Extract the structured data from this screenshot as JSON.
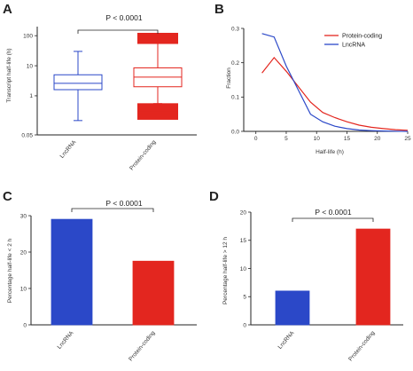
{
  "chart_data": [
    {
      "panel": "A",
      "type": "box",
      "ylabel": "Transcript half-life (h)",
      "yscale": "log",
      "ylim": [
        0.05,
        200
      ],
      "yticks": [
        {
          "v": 0.05,
          "label": "0.05"
        },
        {
          "v": 1,
          "label": "1"
        },
        {
          "v": 10,
          "label": "10"
        },
        {
          "v": 100,
          "label": "100"
        }
      ],
      "categories": [
        "LncRNA",
        "Protein-coding"
      ],
      "boxes": [
        {
          "name": "LncRNA",
          "color": "#2b48c8",
          "whisker_low": 0.15,
          "q1": 1.6,
          "median": 2.6,
          "q3": 5.0,
          "whisker_high": 30
        },
        {
          "name": "Protein-coding",
          "color": "#e3261f",
          "whisker_low": 0.55,
          "q1": 2.0,
          "median": 4.2,
          "q3": 8.5,
          "whisker_high": 55,
          "outliers_low": [
            0.5,
            0.45,
            0.4,
            0.35,
            0.3,
            0.26,
            0.23,
            0.2,
            0.18
          ],
          "outliers_high": [
            60,
            70,
            80,
            95,
            110
          ]
        }
      ],
      "pvalue": "P < 0.0001"
    },
    {
      "panel": "B",
      "type": "line",
      "xlabel": "Half-life (h)",
      "ylabel": "Fraction",
      "xlim": [
        -2,
        25
      ],
      "ylim": [
        0,
        0.3
      ],
      "xticks": [
        0,
        5,
        10,
        15,
        20,
        25
      ],
      "yticks": [
        {
          "v": 0.0,
          "label": "0.0"
        },
        {
          "v": 0.1,
          "label": "0.1"
        },
        {
          "v": 0.2,
          "label": "0.2"
        },
        {
          "v": 0.3,
          "label": "0.3"
        }
      ],
      "legend_position": "top-right",
      "series": [
        {
          "name": "Protein-coding",
          "color": "#e3261f",
          "x": [
            1,
            3,
            5,
            7,
            9,
            11,
            13,
            15,
            17,
            19,
            21,
            23,
            25
          ],
          "y": [
            0.17,
            0.215,
            0.175,
            0.13,
            0.085,
            0.055,
            0.04,
            0.028,
            0.018,
            0.012,
            0.008,
            0.005,
            0.003
          ]
        },
        {
          "name": "LncRNA",
          "color": "#2b48c8",
          "x": [
            1,
            3,
            5,
            7,
            9,
            11,
            13,
            15,
            17,
            19,
            21,
            23,
            25
          ],
          "y": [
            0.285,
            0.275,
            0.19,
            0.12,
            0.05,
            0.028,
            0.015,
            0.008,
            0.004,
            0.002,
            0.001,
            0.0005,
            0.0
          ]
        }
      ]
    },
    {
      "panel": "C",
      "type": "bar",
      "ylabel": "Percentage half-life < 2 h",
      "ylim": [
        0,
        30
      ],
      "yticks": [
        {
          "v": 0,
          "label": "0"
        },
        {
          "v": 10,
          "label": "10"
        },
        {
          "v": 20,
          "label": "20"
        },
        {
          "v": 30,
          "label": "30"
        }
      ],
      "categories": [
        "LncRNA",
        "Protein-coding"
      ],
      "values": [
        29,
        17.5
      ],
      "colors": [
        "#2b48c8",
        "#e3261f"
      ],
      "pvalue": "P < 0.0001"
    },
    {
      "panel": "D",
      "type": "bar",
      "ylabel": "Percentage half-life > 12 h",
      "ylim": [
        0,
        20
      ],
      "yticks": [
        {
          "v": 0,
          "label": "0"
        },
        {
          "v": 5,
          "label": "5"
        },
        {
          "v": 10,
          "label": "10"
        },
        {
          "v": 15,
          "label": "15"
        },
        {
          "v": 20,
          "label": "20"
        }
      ],
      "categories": [
        "LncRNA",
        "Protein-coding"
      ],
      "values": [
        6,
        17
      ],
      "colors": [
        "#2b48c8",
        "#e3261f"
      ],
      "pvalue": "P < 0.0001"
    }
  ]
}
